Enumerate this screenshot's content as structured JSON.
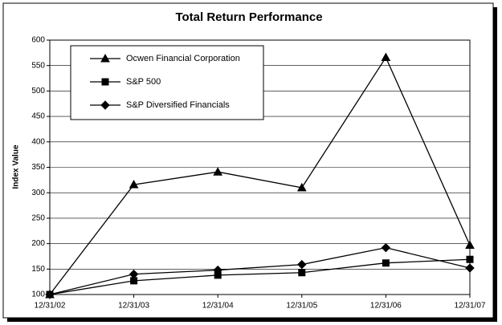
{
  "chart_data": {
    "type": "line",
    "title": "Total Return Performance",
    "y_label": "Index Value",
    "categories": [
      "12/31/02",
      "12/31/03",
      "12/31/04",
      "12/31/05",
      "12/31/06",
      "12/31/07"
    ],
    "series": [
      {
        "name": "Ocwen Financial Corporation",
        "color": "#000000",
        "marker": "triangle",
        "values": [
          100,
          316,
          341,
          310,
          566,
          197
        ]
      },
      {
        "name": "S&P 500",
        "color": "#000000",
        "marker": "square",
        "values": [
          100,
          127,
          138,
          143,
          162,
          169
        ]
      },
      {
        "name": "S&P Diversified Financials",
        "color": "#000000",
        "marker": "diamond",
        "values": [
          100,
          140,
          148,
          159,
          192,
          152
        ]
      }
    ],
    "ylim": [
      100,
      600
    ],
    "yticks": [
      100,
      150,
      200,
      250,
      300,
      350,
      400,
      450,
      500,
      550,
      600
    ],
    "grid": true,
    "legend": "upper left"
  }
}
